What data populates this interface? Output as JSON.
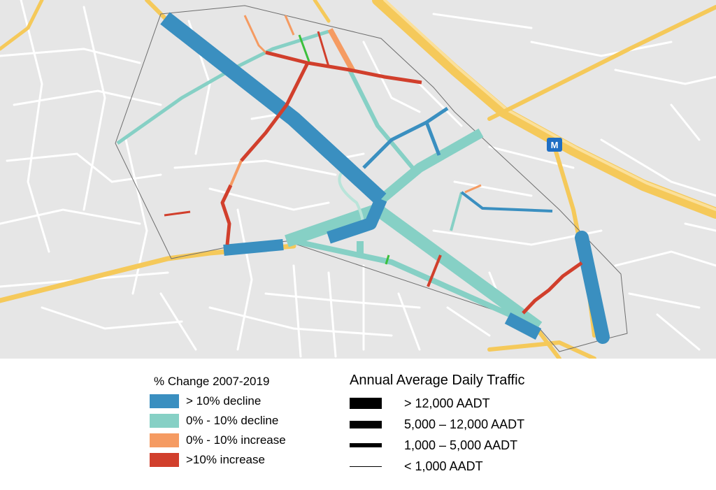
{
  "map": {
    "roads_background": "#d6d6d6",
    "land_color": "#e6e6e6",
    "highway_color": "#f5c95a",
    "metro_badge": "M",
    "metro_color": "#1f6fc4"
  },
  "legend_change": {
    "title": "% Change 2007-2019",
    "items": [
      {
        "label": "> 10% decline",
        "color": "#3a8fc0",
        "key": "decline_gt10"
      },
      {
        "label": "0% - 10% decline",
        "color": "#86d0c5",
        "key": "decline_0_10"
      },
      {
        "label": "0% - 10% increase",
        "color": "#f59b62",
        "key": "increase_0_10"
      },
      {
        "label": ">10% increase",
        "color": "#d13f2c",
        "key": "increase_gt10"
      }
    ]
  },
  "legend_aadt": {
    "title": "Annual Average Daily Traffic",
    "items": [
      {
        "label": "> 12,000 AADT",
        "key": "aadt_12000_plus"
      },
      {
        "label": "5,000 – 12,000 AADT",
        "key": "aadt_5000_12000"
      },
      {
        "label": "1,000 – 5,000 AADT",
        "key": "aadt_1000_5000"
      },
      {
        "label": "< 1,000 AADT",
        "key": "aadt_lt_1000"
      }
    ]
  }
}
